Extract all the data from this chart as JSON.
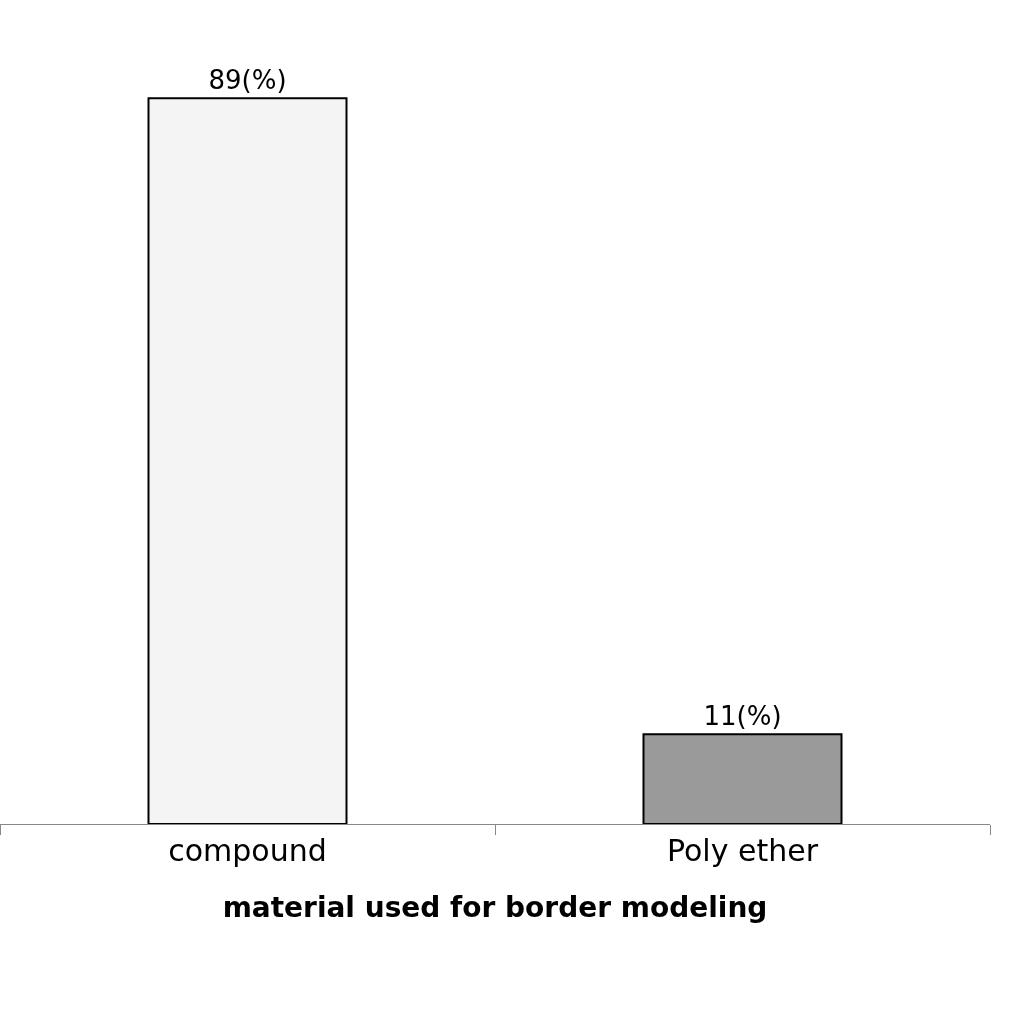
{
  "chart_data": {
    "type": "bar",
    "xlabel": "material used for border modeling",
    "categories": [
      "compound",
      "Poly ether"
    ],
    "values": [
      89,
      11
    ],
    "value_labels": [
      "89(%)",
      "11(%)"
    ],
    "colors": [
      "#f4f4f4",
      "#9a9a9a"
    ],
    "tick_labels": "x",
    "grid": false
  }
}
